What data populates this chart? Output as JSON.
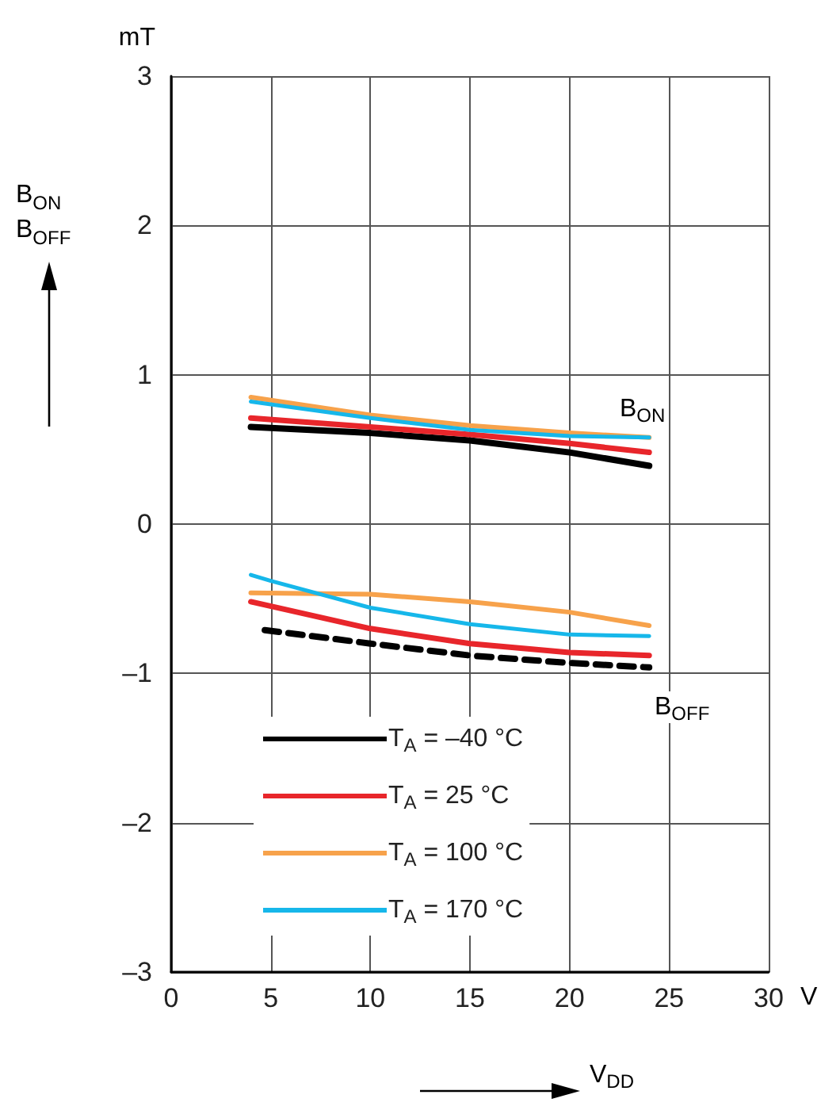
{
  "chart_data": {
    "type": "line",
    "xlabel": "V$_{DD}$",
    "ylabel": "B$_{ON}$\nB$_{OFF}$",
    "annotations": [
      "mT",
      "V",
      "B$_{ON}$",
      "B$_{OFF}$"
    ],
    "xlim": [
      0,
      30
    ],
    "xticks": [
      0,
      5,
      10,
      15,
      20,
      25,
      30
    ],
    "ylim": [
      -3,
      3
    ],
    "yticks": [
      {
        "value": -3,
        "label": "–3"
      },
      {
        "value": -2,
        "label": "–2"
      },
      {
        "value": -1,
        "label": "–1"
      },
      0,
      1,
      2,
      3
    ],
    "grid": true,
    "legend": "bottom left",
    "marker": "none",
    "series": [
      {
        "name": "T$_{A}$ = –40 °C",
        "color": "#000000",
        "line_style": "solid",
        "x": [
          4,
          10,
          15,
          20,
          24
        ],
        "values": [
          0.65,
          0.61,
          0.56,
          0.48,
          0.39
        ]
      },
      {
        "name": "T$_{A}$ = 25 °C",
        "color": "#e8262b",
        "line_style": "solid",
        "x": [
          4,
          10,
          15,
          20,
          24
        ],
        "values": [
          0.71,
          0.65,
          0.6,
          0.54,
          0.48
        ]
      },
      {
        "name": "T$_{A}$ = 100 °C",
        "color": "#f7a24b",
        "line_style": "solid",
        "x": [
          4,
          10,
          15,
          20,
          24
        ],
        "values": [
          0.85,
          0.73,
          0.66,
          0.61,
          0.58
        ]
      },
      {
        "name": "T$_{A}$ = 170 °C",
        "color": "#16b7ea",
        "line_style": "solid",
        "x": [
          4,
          10,
          15,
          20,
          24
        ],
        "values": [
          0.82,
          0.71,
          0.63,
          0.59,
          0.58
        ]
      },
      {
        "color": "#000000",
        "line_style": "dashed",
        "x": [
          4.7,
          10,
          15,
          20,
          24
        ],
        "values": [
          -0.71,
          -0.8,
          -0.88,
          -0.93,
          -0.96
        ]
      },
      {
        "color": "#e8262b",
        "line_style": "solid",
        "x": [
          4,
          10,
          15,
          20,
          24
        ],
        "values": [
          -0.52,
          -0.7,
          -0.8,
          -0.86,
          -0.88
        ]
      },
      {
        "color": "#f7a24b",
        "line_style": "solid",
        "x": [
          4,
          10,
          15,
          20,
          24
        ],
        "values": [
          -0.46,
          -0.47,
          -0.52,
          -0.59,
          -0.68
        ]
      },
      {
        "color": "#16b7ea",
        "line_style": "solid",
        "x": [
          4,
          5,
          10,
          15,
          20,
          24
        ],
        "values": [
          -0.34,
          -0.38,
          -0.56,
          -0.67,
          -0.74,
          -0.75
        ]
      }
    ]
  }
}
